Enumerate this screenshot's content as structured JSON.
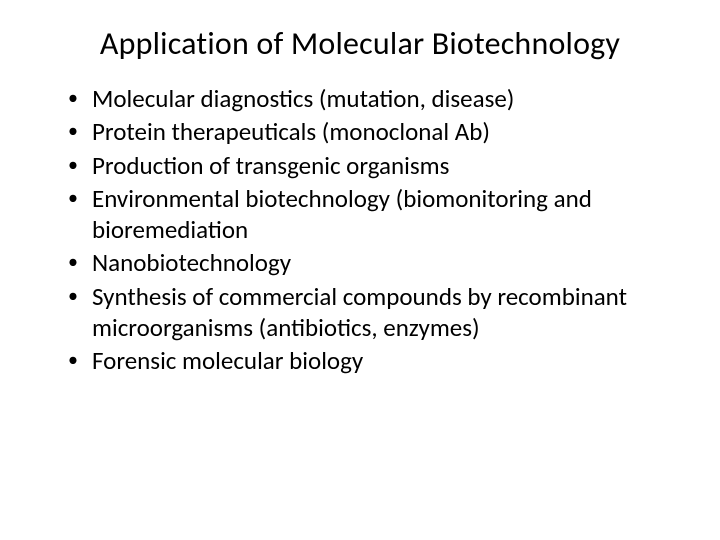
{
  "slide": {
    "title": "Application of Molecular Biotechnology",
    "title_fontsize": 32,
    "body_fontsize": 25,
    "background_color": "#ffffff",
    "text_color": "#000000",
    "bullets": [
      "Molecular diagnostics (mutation, disease)",
      "Protein therapeuticals (monoclonal Ab)",
      "Production of transgenic organisms",
      "Environmental biotechnology (biomonitoring  and bioremediation",
      "Nanobiotechnology",
      "Synthesis of commercial compounds by recombinant microorganisms (antibiotics, enzymes)",
      "Forensic molecular biology"
    ]
  }
}
